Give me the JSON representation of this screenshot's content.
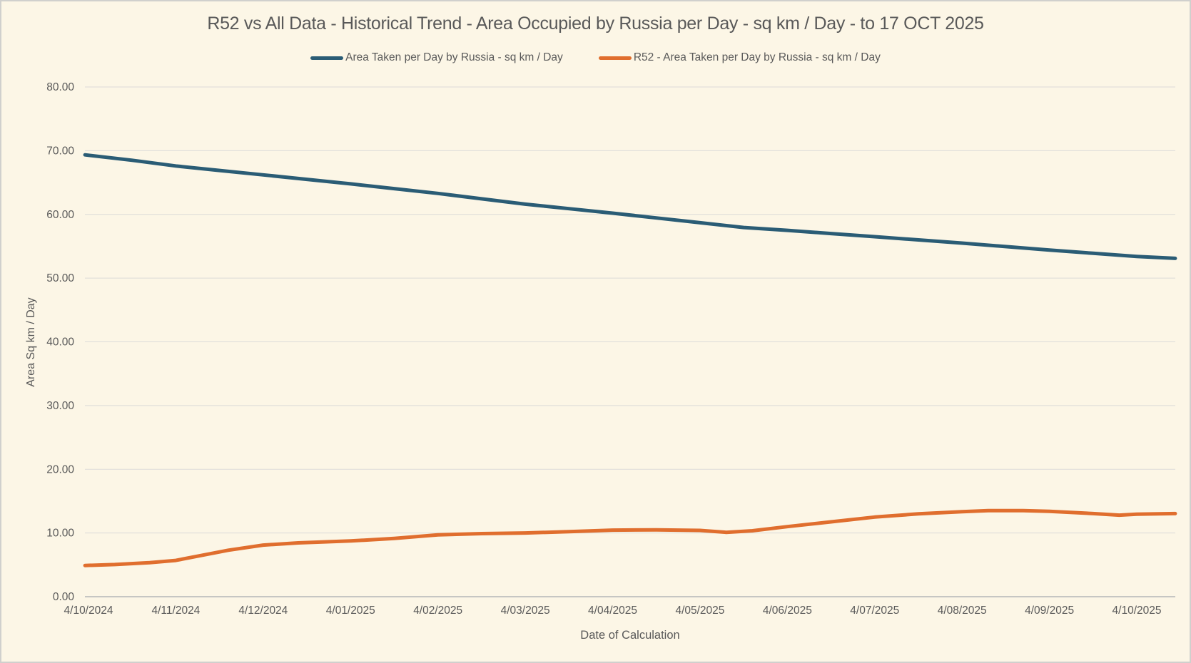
{
  "title": "R52 vs All Data - Historical Trend - Area Occupied by Russia per Day - sq km / Day - to 17 OCT 2025",
  "legend": {
    "items": [
      {
        "label": "Area Taken per Day by Russia - sq km / Day",
        "color": "#2A5C75"
      },
      {
        "label": "R52 - Area Taken per Day by Russia - sq km / Day",
        "color": "#E06E2E"
      }
    ]
  },
  "axes": {
    "x_title": "Date of Calculation",
    "y_title": "Area Sq km / Day"
  },
  "colors": {
    "background": "#FCF6E6",
    "text": "#595959",
    "gridline": "#DBDBD8",
    "axis_line": "#C6C6C3"
  },
  "chart_data": {
    "type": "line",
    "title": "R52 vs All Data - Historical Trend - Area Occupied by Russia per Day - sq km / Day - to 17 OCT 2025",
    "xlabel": "Date of Calculation",
    "ylabel": "Area Sq km / Day",
    "ylim": [
      0,
      80
    ],
    "grid": true,
    "legend_position": "top",
    "x_tick_labels": [
      "4/10/2024",
      "4/11/2024",
      "4/12/2024",
      "4/01/2025",
      "4/02/2025",
      "4/03/2025",
      "4/04/2025",
      "4/05/2025",
      "4/06/2025",
      "4/07/2025",
      "4/08/2025",
      "4/09/2025",
      "4/10/2025"
    ],
    "y_tick_labels": [
      "0.00",
      "10.00",
      "20.00",
      "30.00",
      "40.00",
      "50.00",
      "60.00",
      "70.00",
      "80.00"
    ],
    "x_units": "months after the 4/10/2024 tick (series runs to 17 OCT 2025, u = 12.44)",
    "series": [
      {
        "name": "Area Taken per Day by Russia - sq km / Day",
        "color": "#2A5C75",
        "points": [
          [
            -0.04,
            69.35
          ],
          [
            0.5,
            68.5
          ],
          [
            1.0,
            67.6
          ],
          [
            1.5,
            66.9
          ],
          [
            2.0,
            66.2
          ],
          [
            2.5,
            65.5
          ],
          [
            3.0,
            64.8
          ],
          [
            3.5,
            64.05
          ],
          [
            4.0,
            63.3
          ],
          [
            4.5,
            62.45
          ],
          [
            5.0,
            61.6
          ],
          [
            5.5,
            60.9
          ],
          [
            6.0,
            60.2
          ],
          [
            6.5,
            59.45
          ],
          [
            7.0,
            58.7
          ],
          [
            7.5,
            57.95
          ],
          [
            8.0,
            57.5
          ],
          [
            8.5,
            57.0
          ],
          [
            9.0,
            56.5
          ],
          [
            9.5,
            56.0
          ],
          [
            10.0,
            55.5
          ],
          [
            10.5,
            54.95
          ],
          [
            11.0,
            54.4
          ],
          [
            11.5,
            53.9
          ],
          [
            12.0,
            53.4
          ],
          [
            12.44,
            53.1
          ]
        ]
      },
      {
        "name": "R52 - Area Taken per Day by Russia - sq km / Day",
        "color": "#E06E2E",
        "points": [
          [
            -0.04,
            4.9
          ],
          [
            0.3,
            5.05
          ],
          [
            0.7,
            5.35
          ],
          [
            1.0,
            5.7
          ],
          [
            1.3,
            6.5
          ],
          [
            1.6,
            7.3
          ],
          [
            2.0,
            8.1
          ],
          [
            2.4,
            8.45
          ],
          [
            3.0,
            8.75
          ],
          [
            3.5,
            9.15
          ],
          [
            4.0,
            9.7
          ],
          [
            4.5,
            9.9
          ],
          [
            5.0,
            10.0
          ],
          [
            5.5,
            10.2
          ],
          [
            6.0,
            10.45
          ],
          [
            6.5,
            10.5
          ],
          [
            7.0,
            10.4
          ],
          [
            7.3,
            10.1
          ],
          [
            7.6,
            10.35
          ],
          [
            8.0,
            11.0
          ],
          [
            8.5,
            11.75
          ],
          [
            9.0,
            12.5
          ],
          [
            9.5,
            13.0
          ],
          [
            10.0,
            13.35
          ],
          [
            10.3,
            13.5
          ],
          [
            10.7,
            13.5
          ],
          [
            11.0,
            13.4
          ],
          [
            11.5,
            13.05
          ],
          [
            11.8,
            12.8
          ],
          [
            12.0,
            12.95
          ],
          [
            12.44,
            13.05
          ]
        ]
      }
    ]
  }
}
